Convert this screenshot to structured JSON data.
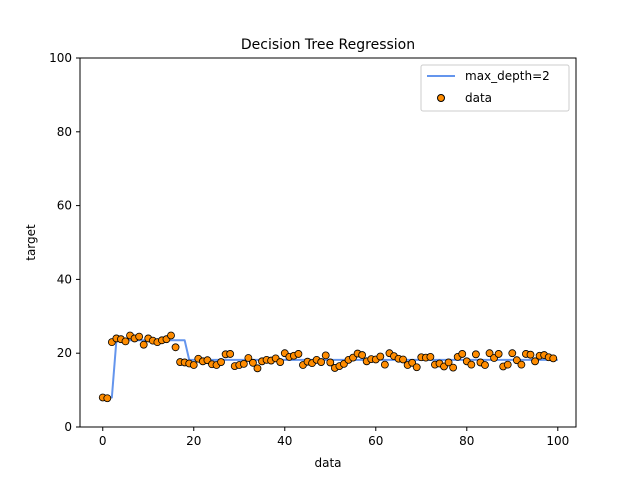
{
  "chart_data": {
    "type": "scatter",
    "title": "Decision Tree Regression",
    "xlabel": "data",
    "ylabel": "target",
    "xlim": [
      -5,
      104
    ],
    "ylim": [
      0,
      100
    ],
    "xticks": [
      0,
      20,
      40,
      60,
      80,
      100
    ],
    "yticks": [
      0,
      20,
      40,
      60,
      80,
      100
    ],
    "legend_position": "top-right",
    "colors": {
      "line": "#6495ed",
      "point_fill": "#ff8c00",
      "point_edge": "#000000",
      "axes": "#000000"
    },
    "series": [
      {
        "name": "max_depth=2",
        "kind": "line",
        "x": [
          0,
          2,
          3,
          18,
          19,
          100
        ],
        "y": [
          8.0,
          8.0,
          23.5,
          23.5,
          18.2,
          18.2
        ]
      },
      {
        "name": "data",
        "kind": "scatter",
        "x": [
          0,
          1,
          2,
          3,
          4,
          5,
          6,
          7,
          8,
          9,
          10,
          11,
          12,
          13,
          14,
          15,
          16,
          17,
          18,
          19,
          20,
          21,
          22,
          23,
          24,
          25,
          26,
          27,
          28,
          29,
          30,
          31,
          32,
          33,
          34,
          35,
          36,
          37,
          38,
          39,
          40,
          41,
          42,
          43,
          44,
          45,
          46,
          47,
          48,
          49,
          50,
          51,
          52,
          53,
          54,
          55,
          56,
          57,
          58,
          59,
          60,
          61,
          62,
          63,
          64,
          65,
          66,
          67,
          68,
          69,
          70,
          71,
          72,
          73,
          74,
          75,
          76,
          77,
          78,
          79,
          80,
          81,
          82,
          83,
          84,
          85,
          86,
          87,
          88,
          89,
          90,
          91,
          92,
          93,
          94,
          95,
          96,
          97,
          98,
          99
        ],
        "y": [
          8.0,
          7.8,
          23.0,
          24.0,
          23.8,
          23.2,
          24.8,
          24.0,
          24.5,
          22.3,
          24.0,
          23.4,
          23.0,
          23.5,
          23.8,
          24.8,
          21.6,
          17.6,
          17.5,
          17.2,
          16.8,
          18.5,
          17.8,
          18.1,
          17.0,
          16.8,
          17.6,
          19.7,
          19.8,
          16.5,
          16.8,
          17.1,
          18.7,
          17.4,
          15.9,
          17.8,
          18.2,
          18.0,
          18.6,
          17.6,
          20.0,
          19.0,
          19.3,
          19.8,
          16.8,
          17.7,
          17.3,
          18.2,
          17.6,
          19.4,
          17.5,
          16.0,
          16.5,
          17.1,
          18.2,
          18.8,
          19.9,
          19.5,
          17.8,
          18.4,
          18.3,
          19.1,
          16.9,
          20.0,
          19.2,
          18.5,
          18.3,
          16.8,
          17.4,
          16.2,
          18.9,
          18.8,
          19.0,
          16.9,
          17.2,
          16.4,
          17.5,
          16.1,
          19.0,
          19.8,
          17.8,
          16.9,
          19.7,
          17.5,
          16.8,
          20.0,
          18.7,
          19.8,
          16.4,
          16.9,
          20.0,
          18.1,
          16.9,
          19.8,
          19.6,
          17.8,
          19.3,
          19.5,
          18.9,
          18.6
        ]
      }
    ]
  }
}
